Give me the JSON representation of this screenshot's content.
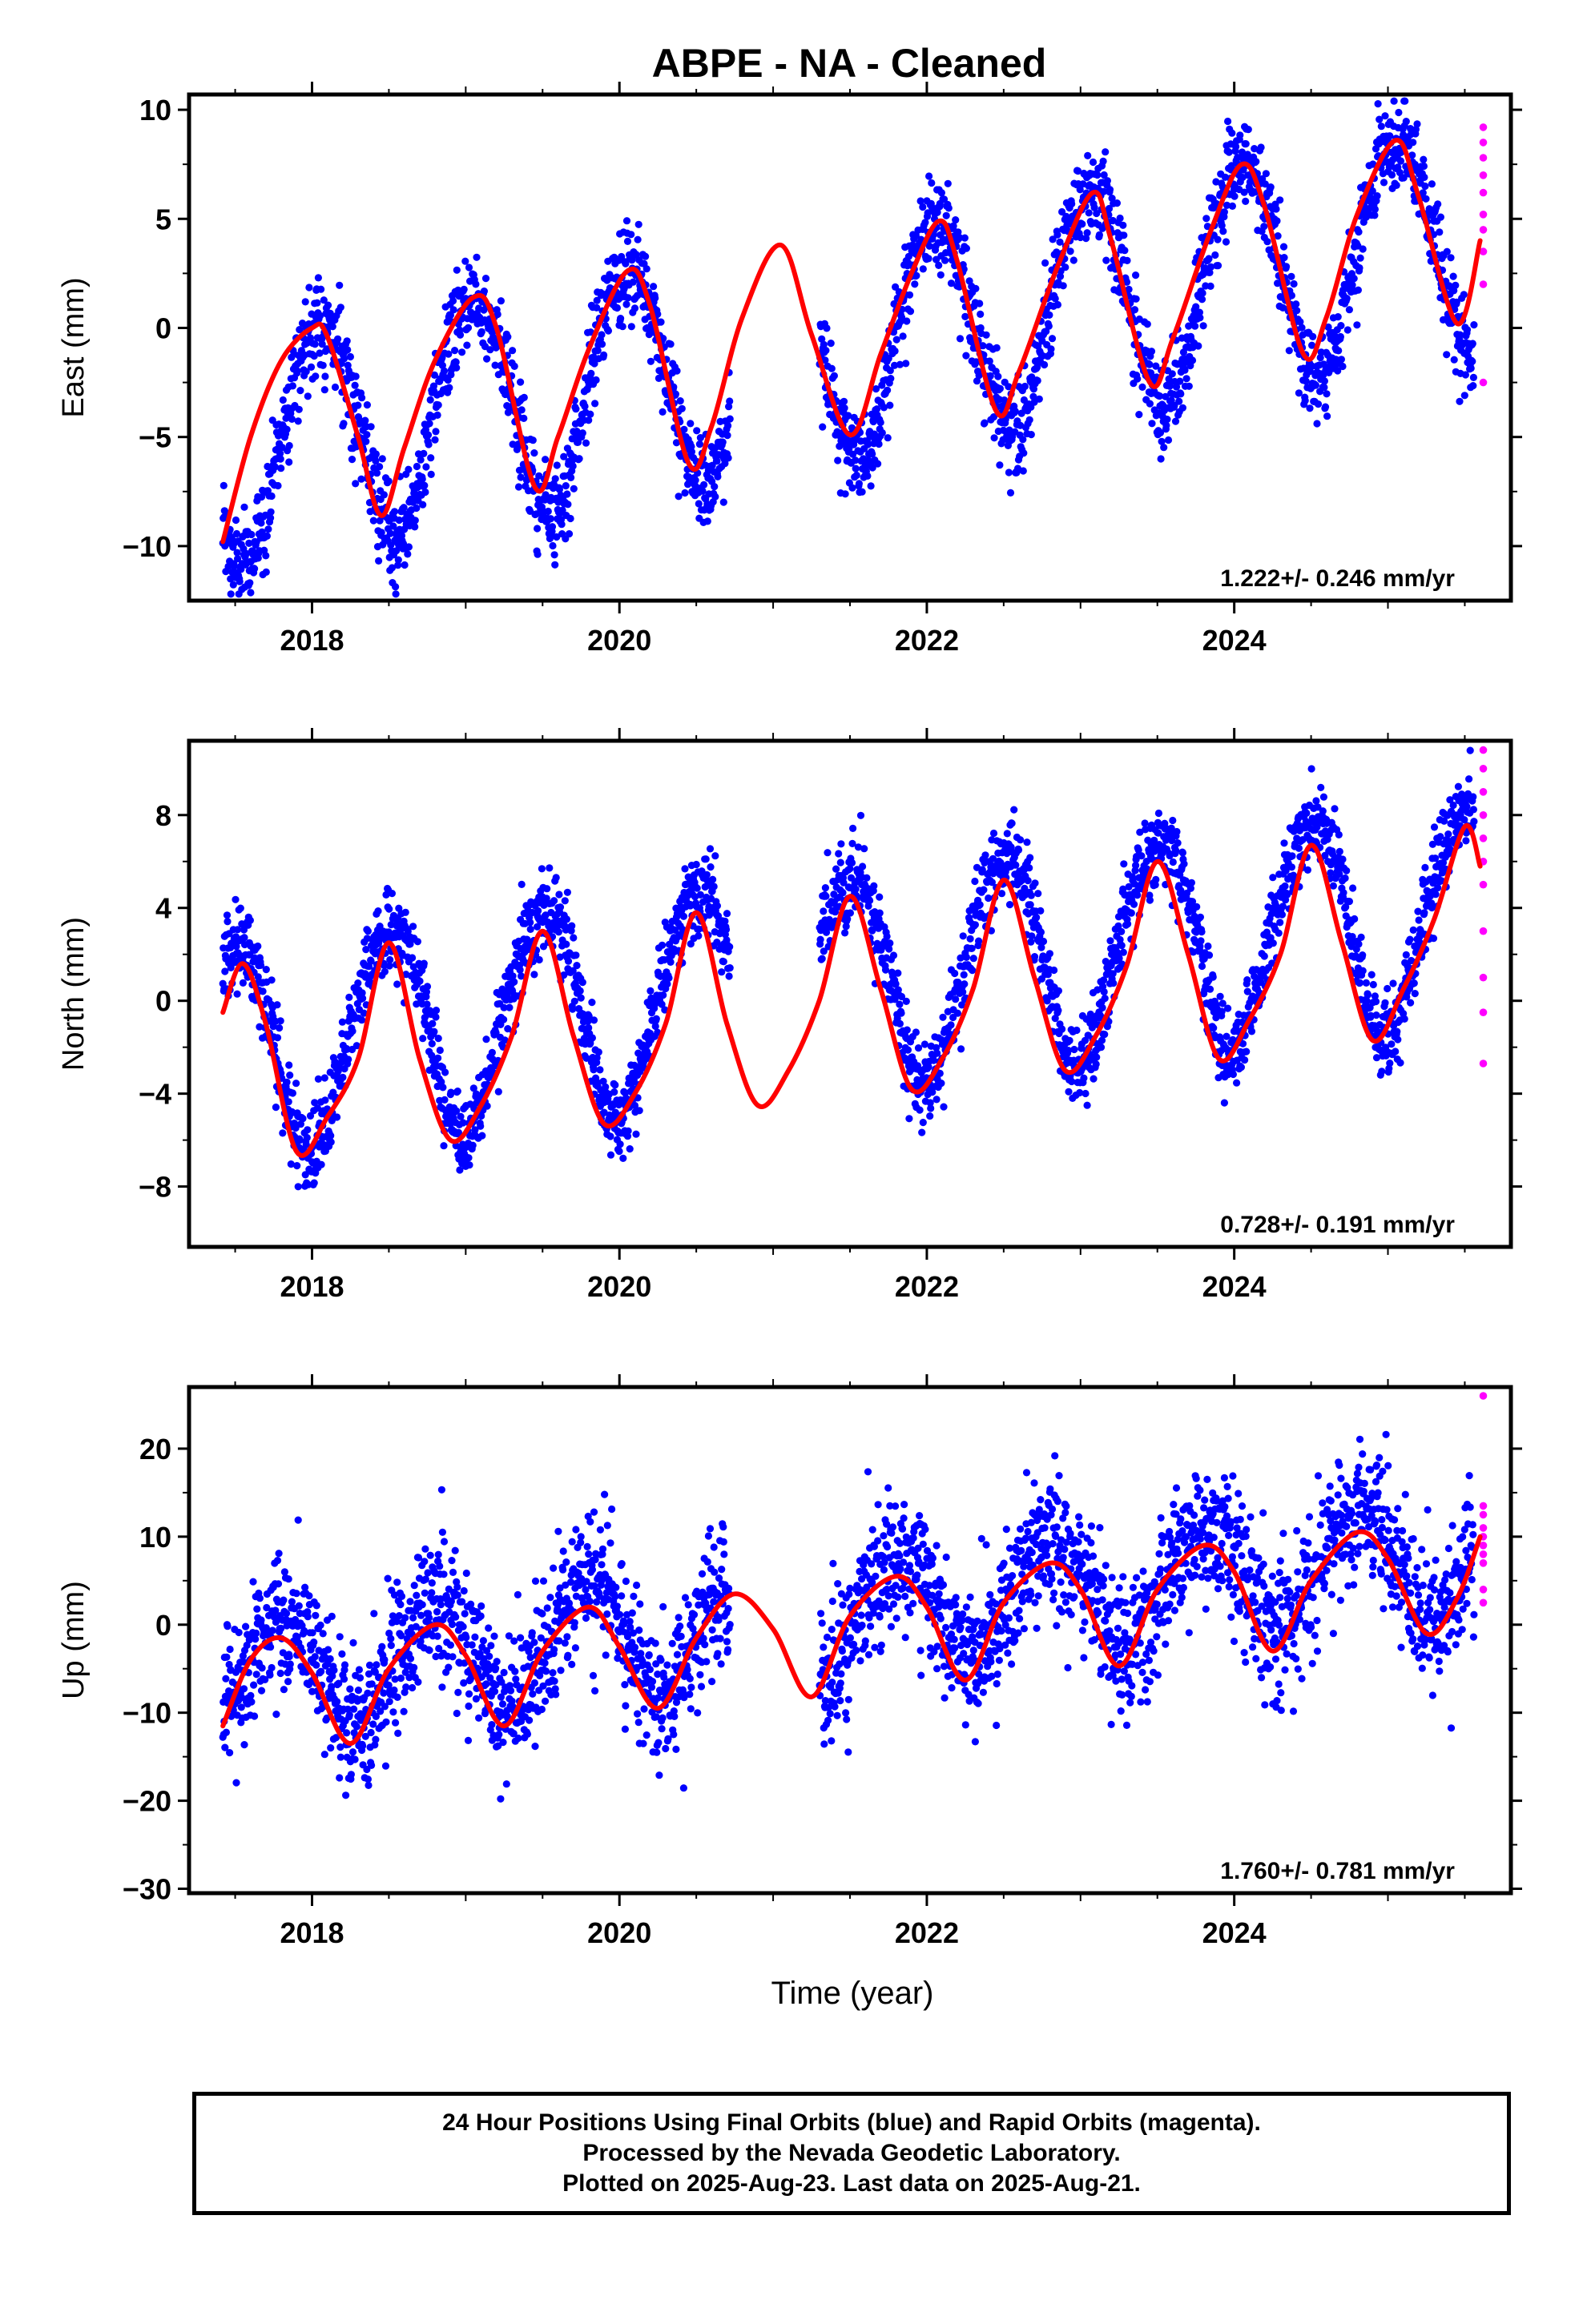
{
  "chart_data": {
    "title": "ABPE  - NA - Cleaned",
    "xlabel": "Time (year)",
    "xlim": [
      2017.2,
      2025.8
    ],
    "xticks": [
      2018,
      2020,
      2022,
      2024
    ],
    "xtick_labels": [
      "2018",
      "2020",
      "2022",
      "2024"
    ],
    "colors": {
      "final_orbits": "#0000ff",
      "rapid_orbits": "#ff00ff",
      "fit": "#ff0000"
    },
    "panels": [
      {
        "type": "scatter",
        "ylabel": "East (mm)",
        "ylim": [
          -12.5,
          10.7
        ],
        "yticks": [
          -10,
          -5,
          0,
          5,
          10
        ],
        "ytick_labels": [
          "−10",
          "−5",
          "0",
          "5",
          "10"
        ],
        "rate_text": "1.222+/- 0.246 mm/yr",
        "model": {
          "intercept": -5.5,
          "slope": 1.222,
          "annual_amp": 5.2,
          "annual_peak": 0.05,
          "semiannual_amp": 0.3,
          "semiannual_peak": 0.3,
          "scatter_sd": 1.1
        },
        "rapid_orbits": [
          9.2,
          8.5,
          7.8,
          7.0,
          6.2,
          5.2,
          4.5,
          3.5,
          2.0,
          -2.5
        ],
        "fit_curve": {
          "x": [
            2017.42,
            2017.6,
            2017.8,
            2018.0,
            2018.1,
            2018.3,
            2018.45,
            2018.6,
            2018.8,
            2019.05,
            2019.2,
            2019.45,
            2019.6,
            2019.8,
            2020.05,
            2020.2,
            2020.45,
            2020.6,
            2020.8,
            2021.05,
            2021.25,
            2021.5,
            2021.7,
            2021.9,
            2022.08,
            2022.2,
            2022.45,
            2022.6,
            2022.85,
            2023.08,
            2023.2,
            2023.45,
            2023.6,
            2023.85,
            2024.05,
            2024.2,
            2024.45,
            2024.6,
            2024.8,
            2025.05,
            2025.2,
            2025.45,
            2025.6
          ],
          "y": [
            -9.8,
            -5.0,
            -1.5,
            0.0,
            -0.4,
            -5.0,
            -8.6,
            -5.5,
            -1.5,
            1.4,
            0.0,
            -7.3,
            -5.0,
            -1.0,
            2.6,
            1.0,
            -6.2,
            -4.5,
            0.5,
            3.8,
            -0.3,
            -4.9,
            -1.2,
            2.5,
            4.9,
            3.0,
            -3.8,
            -2.0,
            2.8,
            6.2,
            4.0,
            -2.5,
            -0.5,
            4.5,
            7.5,
            5.5,
            -1.2,
            0.5,
            5.2,
            8.6,
            6.0,
            0.2,
            4.0
          ]
        }
      },
      {
        "type": "scatter",
        "ylabel": "North (mm)",
        "ylim": [
          -10.6,
          11.2
        ],
        "yticks": [
          -8,
          -4,
          0,
          4,
          8
        ],
        "ytick_labels": [
          "−8",
          "−4",
          "0",
          "4",
          "8"
        ],
        "rate_text": "0.728+/- 0.191 mm/yr",
        "model": {
          "intercept": -2.0,
          "slope": 0.728,
          "annual_amp": 4.6,
          "annual_peak": 0.5,
          "semiannual_amp": 0.4,
          "semiannual_peak": 0.2,
          "scatter_sd": 0.9
        },
        "rapid_orbits": [
          10.8,
          10.0,
          9.0,
          8.0,
          7.0,
          6.0,
          5.0,
          3.0,
          1.0,
          -0.5,
          -2.7
        ],
        "fit_curve": {
          "x": [
            2017.42,
            2017.55,
            2017.7,
            2017.9,
            2018.1,
            2018.3,
            2018.5,
            2018.7,
            2018.9,
            2019.1,
            2019.3,
            2019.5,
            2019.7,
            2019.9,
            2020.1,
            2020.3,
            2020.5,
            2020.7,
            2020.9,
            2021.1,
            2021.3,
            2021.5,
            2021.7,
            2021.9,
            2022.1,
            2022.3,
            2022.5,
            2022.7,
            2022.9,
            2023.1,
            2023.3,
            2023.5,
            2023.7,
            2023.9,
            2024.1,
            2024.3,
            2024.5,
            2024.7,
            2024.9,
            2025.1,
            2025.3,
            2025.5,
            2025.6
          ],
          "y": [
            -0.5,
            1.6,
            -1.0,
            -6.5,
            -5.0,
            -2.5,
            2.5,
            -2.5,
            -6.0,
            -4.5,
            -1.5,
            3.0,
            -1.5,
            -5.3,
            -4.0,
            -1.0,
            3.8,
            -1.0,
            -4.5,
            -3.0,
            0.0,
            4.5,
            0.5,
            -3.8,
            -2.5,
            0.5,
            5.2,
            1.0,
            -3.0,
            -1.5,
            1.5,
            6.0,
            2.0,
            -2.5,
            -0.8,
            2.0,
            6.7,
            2.5,
            -1.7,
            0.5,
            3.5,
            7.5,
            5.8
          ]
        }
      },
      {
        "type": "scatter",
        "ylabel": "Up (mm)",
        "ylim": [
          -30.5,
          27.0
        ],
        "yticks": [
          -30,
          -20,
          -10,
          0,
          10,
          20
        ],
        "ytick_labels": [
          "−30",
          "−20",
          "−10",
          "0",
          "10",
          "20"
        ],
        "rate_text": "1.760+/- 0.781 mm/yr",
        "model": {
          "intercept": -6.0,
          "slope": 1.76,
          "annual_amp": 6.5,
          "annual_peak": 0.8,
          "semiannual_amp": 0.5,
          "semiannual_peak": 0.5,
          "scatter_sd": 4.0
        },
        "rapid_orbits": [
          26.0,
          13.5,
          12.5,
          11.0,
          10.0,
          9.0,
          8.0,
          7.0,
          4.0,
          2.5
        ],
        "fit_curve": {
          "x": [
            2017.42,
            2017.6,
            2017.8,
            2018.0,
            2018.25,
            2018.5,
            2018.8,
            2019.0,
            2019.25,
            2019.5,
            2019.8,
            2020.0,
            2020.25,
            2020.5,
            2020.75,
            2021.0,
            2021.25,
            2021.5,
            2021.8,
            2022.0,
            2022.25,
            2022.5,
            2022.8,
            2023.0,
            2023.25,
            2023.5,
            2023.8,
            2024.0,
            2024.25,
            2024.5,
            2024.8,
            2025.0,
            2025.25,
            2025.45,
            2025.6
          ],
          "y": [
            -11.5,
            -4.0,
            -1.5,
            -5.5,
            -13.5,
            -5.0,
            0.0,
            -3.5,
            -11.5,
            -3.0,
            2.0,
            -2.5,
            -9.5,
            -1.5,
            3.5,
            -0.5,
            -8.2,
            1.0,
            5.5,
            2.0,
            -6.3,
            2.5,
            7.0,
            4.0,
            -4.7,
            4.0,
            9.0,
            6.0,
            -3.0,
            5.0,
            10.5,
            7.5,
            -1.0,
            3.0,
            10.0
          ]
        }
      }
    ],
    "gap": [
      2020.72,
      2021.3
    ]
  },
  "footer": {
    "line1": "24 Hour Positions Using Final Orbits (blue) and Rapid Orbits (magenta).",
    "line2": "Processed by the Nevada Geodetic Laboratory.",
    "line3": "Plotted on 2025-Aug-23. Last data on 2025-Aug-21."
  }
}
